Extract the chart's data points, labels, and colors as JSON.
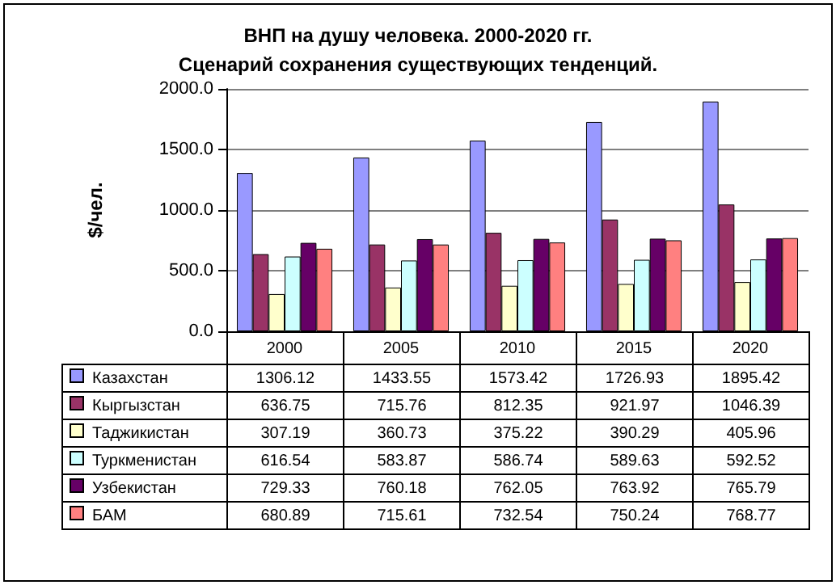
{
  "chart_data": {
    "type": "bar",
    "title": "ВНП на душу человека. 2000-2020 гг.\nСценарий сохранения существующих тенденций.",
    "ylabel": "$/чел.",
    "categories": [
      "2000",
      "2005",
      "2010",
      "2015",
      "2020"
    ],
    "series": [
      {
        "name": "Казахстан",
        "color": "#9999ff",
        "values": [
          1306.12,
          1433.55,
          1573.42,
          1726.93,
          1895.42
        ]
      },
      {
        "name": "Кыргызстан",
        "color": "#993366",
        "values": [
          636.75,
          715.76,
          812.35,
          921.97,
          1046.39
        ]
      },
      {
        "name": "Таджикистан",
        "color": "#ffffcc",
        "values": [
          307.19,
          360.73,
          375.22,
          390.29,
          405.96
        ]
      },
      {
        "name": "Туркменистан",
        "color": "#ccffff",
        "values": [
          616.54,
          583.87,
          586.74,
          589.63,
          592.52
        ]
      },
      {
        "name": "Узбекистан",
        "color": "#660066",
        "values": [
          729.33,
          760.18,
          762.05,
          763.92,
          765.79
        ]
      },
      {
        "name": "БАМ",
        "color": "#ff8080",
        "values": [
          680.89,
          715.61,
          732.54,
          750.24,
          768.77
        ]
      }
    ],
    "ylim": [
      0,
      2000
    ],
    "yticks": [
      {
        "value": 0,
        "label": "0.0"
      },
      {
        "value": 500,
        "label": "500.0"
      },
      {
        "value": 1000,
        "label": "1000.0"
      },
      {
        "value": 1500,
        "label": "1500.0"
      },
      {
        "value": 2000,
        "label": "2000.0"
      }
    ],
    "grid": "y",
    "legend": "bottom",
    "data_labels": true
  }
}
